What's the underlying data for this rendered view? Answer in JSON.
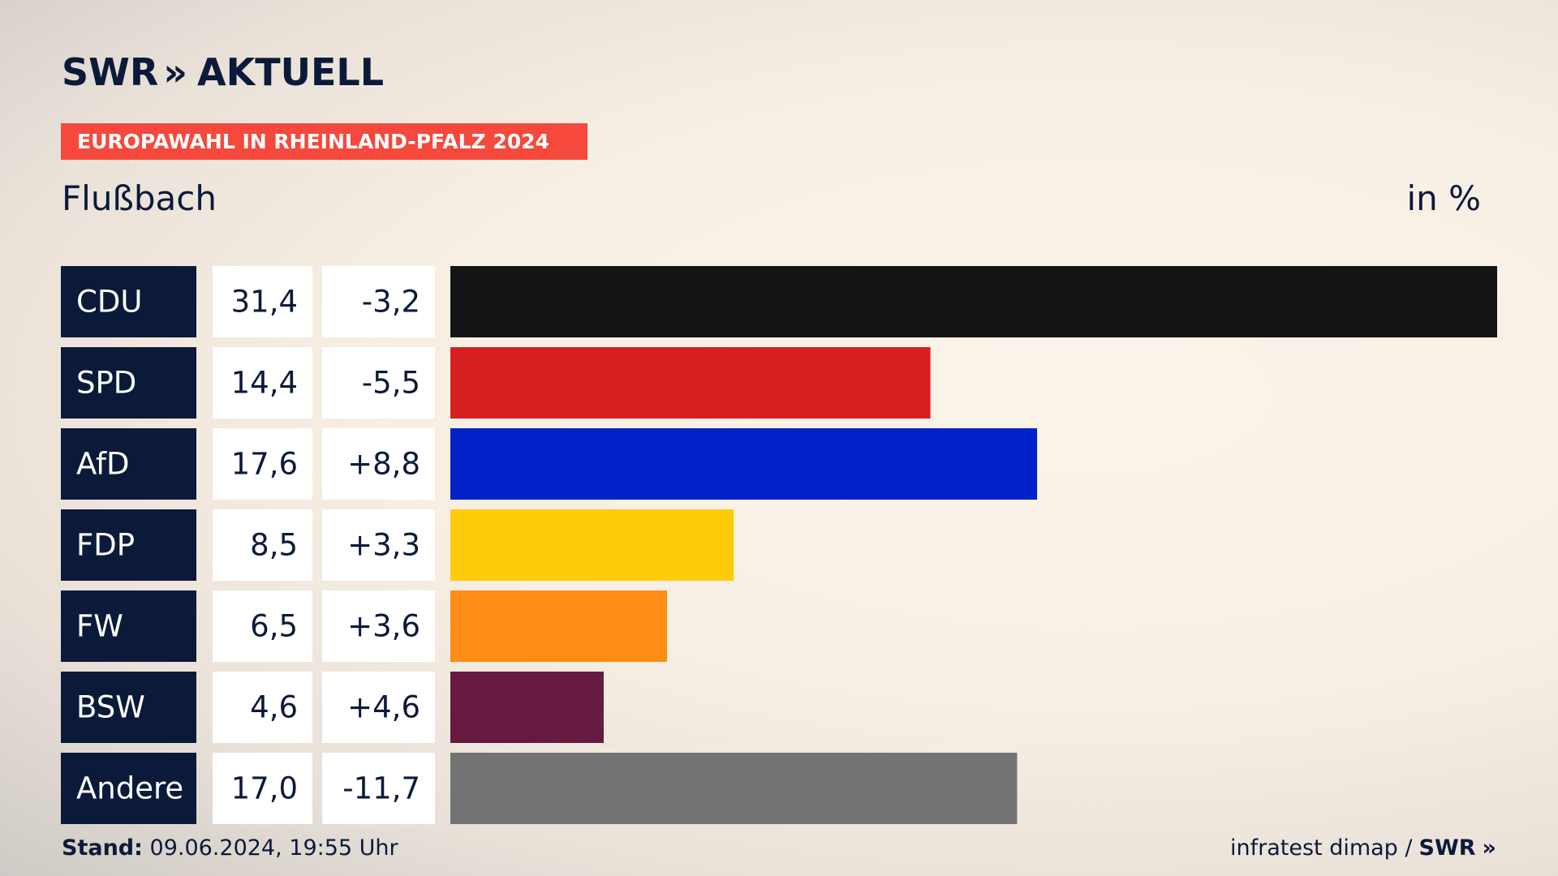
{
  "header": {
    "logo_text": "SWR",
    "logo_chevrons": "»",
    "logo_suffix": "AKTUELL",
    "banner": "EUROPAWAHL IN RHEINLAND-PFALZ 2024",
    "subtitle": "Flußbach",
    "unit": "in %"
  },
  "colors": {
    "label_bg": "#0c1a3a",
    "cell_bg": "#ffffff",
    "banner_bg": "#f4493c"
  },
  "chart_data": {
    "type": "bar",
    "orientation": "horizontal",
    "categories": [
      "CDU",
      "SPD",
      "AfD",
      "FDP",
      "FW",
      "BSW",
      "Andere"
    ],
    "values": [
      31.4,
      14.4,
      17.6,
      8.5,
      6.5,
      4.6,
      17.0
    ],
    "value_labels": [
      "31,4",
      "14,4",
      "17,6",
      "8,5",
      "6,5",
      "4,6",
      "17,0"
    ],
    "change_labels": [
      "-3,2",
      "-5,5",
      "+8,8",
      "+3,3",
      "+3,6",
      "+4,6",
      "-11,7"
    ],
    "bar_colors": [
      "#141414",
      "#d71f1f",
      "#0022c8",
      "#ffcc0b",
      "#ff8c15",
      "#661a3f",
      "#737373"
    ],
    "xlim": [
      0,
      31.4
    ]
  },
  "footer": {
    "stand_label": "Stand:",
    "stand_value": "09.06.2024, 19:55 Uhr",
    "source": "infratest dimap /",
    "source_logo": "SWR",
    "source_chevrons": "»"
  }
}
